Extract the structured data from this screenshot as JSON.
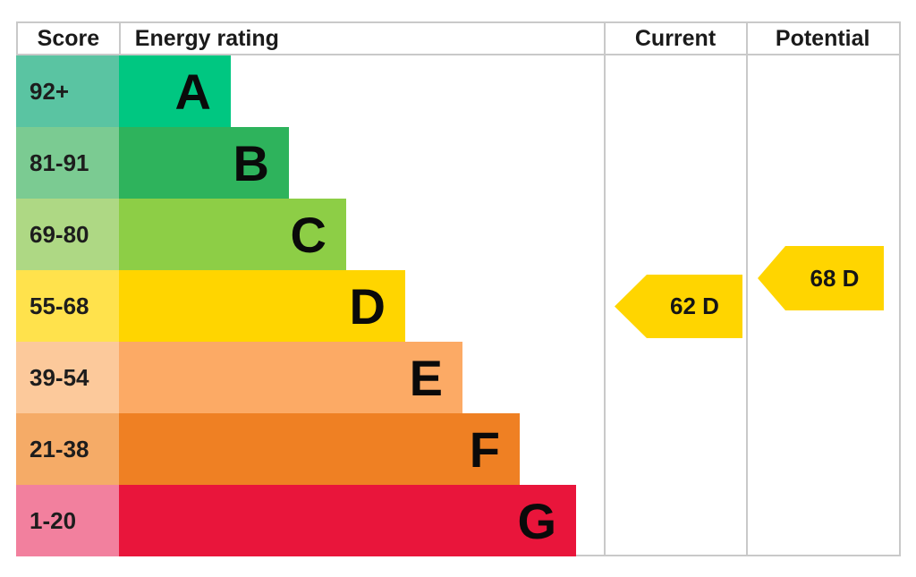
{
  "header": {
    "score": "Score",
    "energy_rating": "Energy rating",
    "current": "Current",
    "potential": "Potential"
  },
  "bands": [
    {
      "score": "92+",
      "letter": "A",
      "bar_color": "#00c781",
      "score_color": "#5ac4a2"
    },
    {
      "score": "81-91",
      "letter": "B",
      "bar_color": "#2eb35c",
      "score_color": "#7bcb92"
    },
    {
      "score": "69-80",
      "letter": "C",
      "bar_color": "#8dce46",
      "score_color": "#aed884"
    },
    {
      "score": "55-68",
      "letter": "D",
      "bar_color": "#ffd500",
      "score_color": "#ffe24c"
    },
    {
      "score": "39-54",
      "letter": "E",
      "bar_color": "#fcaa65",
      "score_color": "#fcc99b"
    },
    {
      "score": "21-38",
      "letter": "F",
      "bar_color": "#ef8023",
      "score_color": "#f5ab67"
    },
    {
      "score": "1-20",
      "letter": "G",
      "bar_color": "#e9153b",
      "score_color": "#f2809e"
    }
  ],
  "current_arrow": {
    "label": "62 D",
    "color": "#ffd500"
  },
  "potential_arrow": {
    "label": "68 D",
    "color": "#ffd500"
  },
  "border_color": "#c9c9c9",
  "text_color": "#000000",
  "chart_data": {
    "type": "bar",
    "title": "",
    "columns": [
      "Score",
      "Energy rating",
      "Current",
      "Potential"
    ],
    "categories": [
      "A",
      "B",
      "C",
      "D",
      "E",
      "F",
      "G"
    ],
    "score_ranges": [
      "92+",
      "81-91",
      "69-80",
      "55-68",
      "39-54",
      "21-38",
      "1-20"
    ],
    "band_colors": [
      "#00c781",
      "#2eb35c",
      "#8dce46",
      "#ffd500",
      "#fcaa65",
      "#ef8023",
      "#e9153b"
    ],
    "bar_relative_lengths": [
      1,
      2,
      3,
      4,
      5,
      6,
      7
    ],
    "current": {
      "value": 62,
      "rating": "D"
    },
    "potential": {
      "value": 68,
      "rating": "D"
    },
    "legend_position": "none",
    "grid": false
  }
}
